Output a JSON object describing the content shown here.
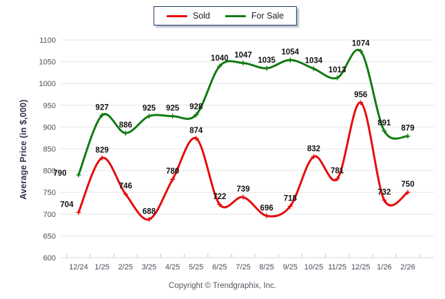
{
  "chart_data": {
    "type": "line",
    "title": "",
    "xlabel": "",
    "ylabel": "Average Price (in $,000)",
    "categories": [
      "12/24",
      "1/25",
      "2/25",
      "3/25",
      "4/25",
      "5/25",
      "6/25",
      "7/25",
      "8/25",
      "9/25",
      "10/25",
      "11/25",
      "12/25",
      "1/26",
      "2/26"
    ],
    "series": [
      {
        "name": "Sold",
        "color": "#e60b0b",
        "values": [
          704,
          829,
          746,
          688,
          780,
          874,
          722,
          739,
          696,
          718,
          832,
          781,
          956,
          732,
          750
        ]
      },
      {
        "name": "For Sale",
        "color": "#117a11",
        "values": [
          790,
          927,
          886,
          925,
          925,
          928,
          1040,
          1047,
          1035,
          1054,
          1034,
          1013,
          1074,
          891,
          879
        ]
      }
    ],
    "ylim": [
      600,
      1100
    ],
    "ytick_step": 50,
    "grid": true,
    "legend_position": "top-center",
    "point_marker": "plus",
    "data_labels": true,
    "label_offsets": {
      "Sold": {
        "0": [
          -17,
          0
        ]
      },
      "For Sale": {
        "0": [
          -27,
          9
        ]
      }
    }
  },
  "footer": {
    "text": "Copyright © Trendgraphix, Inc."
  },
  "colors": {
    "grid": "#e4e4e6",
    "axis_line": "#d6d6d8",
    "tick": "#c9c9cc",
    "axis_text": "#4c4c5a",
    "data_label_text": "#121212",
    "legend_border": "#17365d"
  }
}
